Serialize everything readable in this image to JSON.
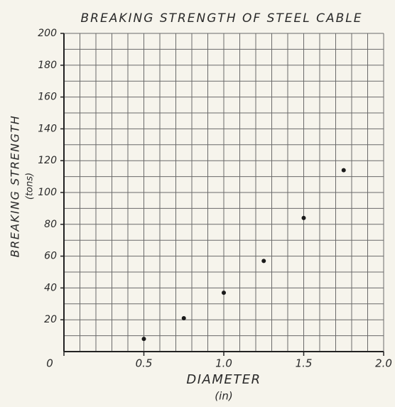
{
  "chart_data": {
    "type": "scatter",
    "title": "BREAKING STRENGTH OF STEEL CABLE",
    "xlabel": "DIAMETER",
    "xunit": "(in)",
    "ylabel": "BREAKING STRENGTH",
    "yunit": "(tons)",
    "x": [
      0.5,
      0.75,
      1.0,
      1.25,
      1.5,
      1.75
    ],
    "values": [
      8,
      21,
      37,
      57,
      84,
      114
    ],
    "color": "#1a1a1a",
    "xlim": [
      0,
      2.0
    ],
    "ylim": [
      0,
      200
    ],
    "xticks": [
      {
        "value": 0,
        "label": "0"
      },
      0.5,
      {
        "value": 1,
        "label": "1.0"
      },
      1.5,
      {
        "value": 2,
        "label": "2.0"
      }
    ],
    "yticks": [
      20,
      40,
      60,
      80,
      100,
      120,
      140,
      160,
      180,
      200
    ],
    "xgrid": [
      0.1,
      0.2,
      0.3,
      0.4,
      0.5,
      0.6,
      0.7,
      0.8,
      0.9,
      1.0,
      1.1,
      1.2,
      1.3,
      1.4,
      1.5,
      1.6,
      1.7,
      1.8,
      1.9,
      2.0
    ],
    "ygrid": [
      10,
      20,
      30,
      40,
      50,
      60,
      70,
      80,
      90,
      100,
      110,
      120,
      130,
      140,
      150,
      160,
      170,
      180,
      190,
      200
    ],
    "grid": true
  }
}
